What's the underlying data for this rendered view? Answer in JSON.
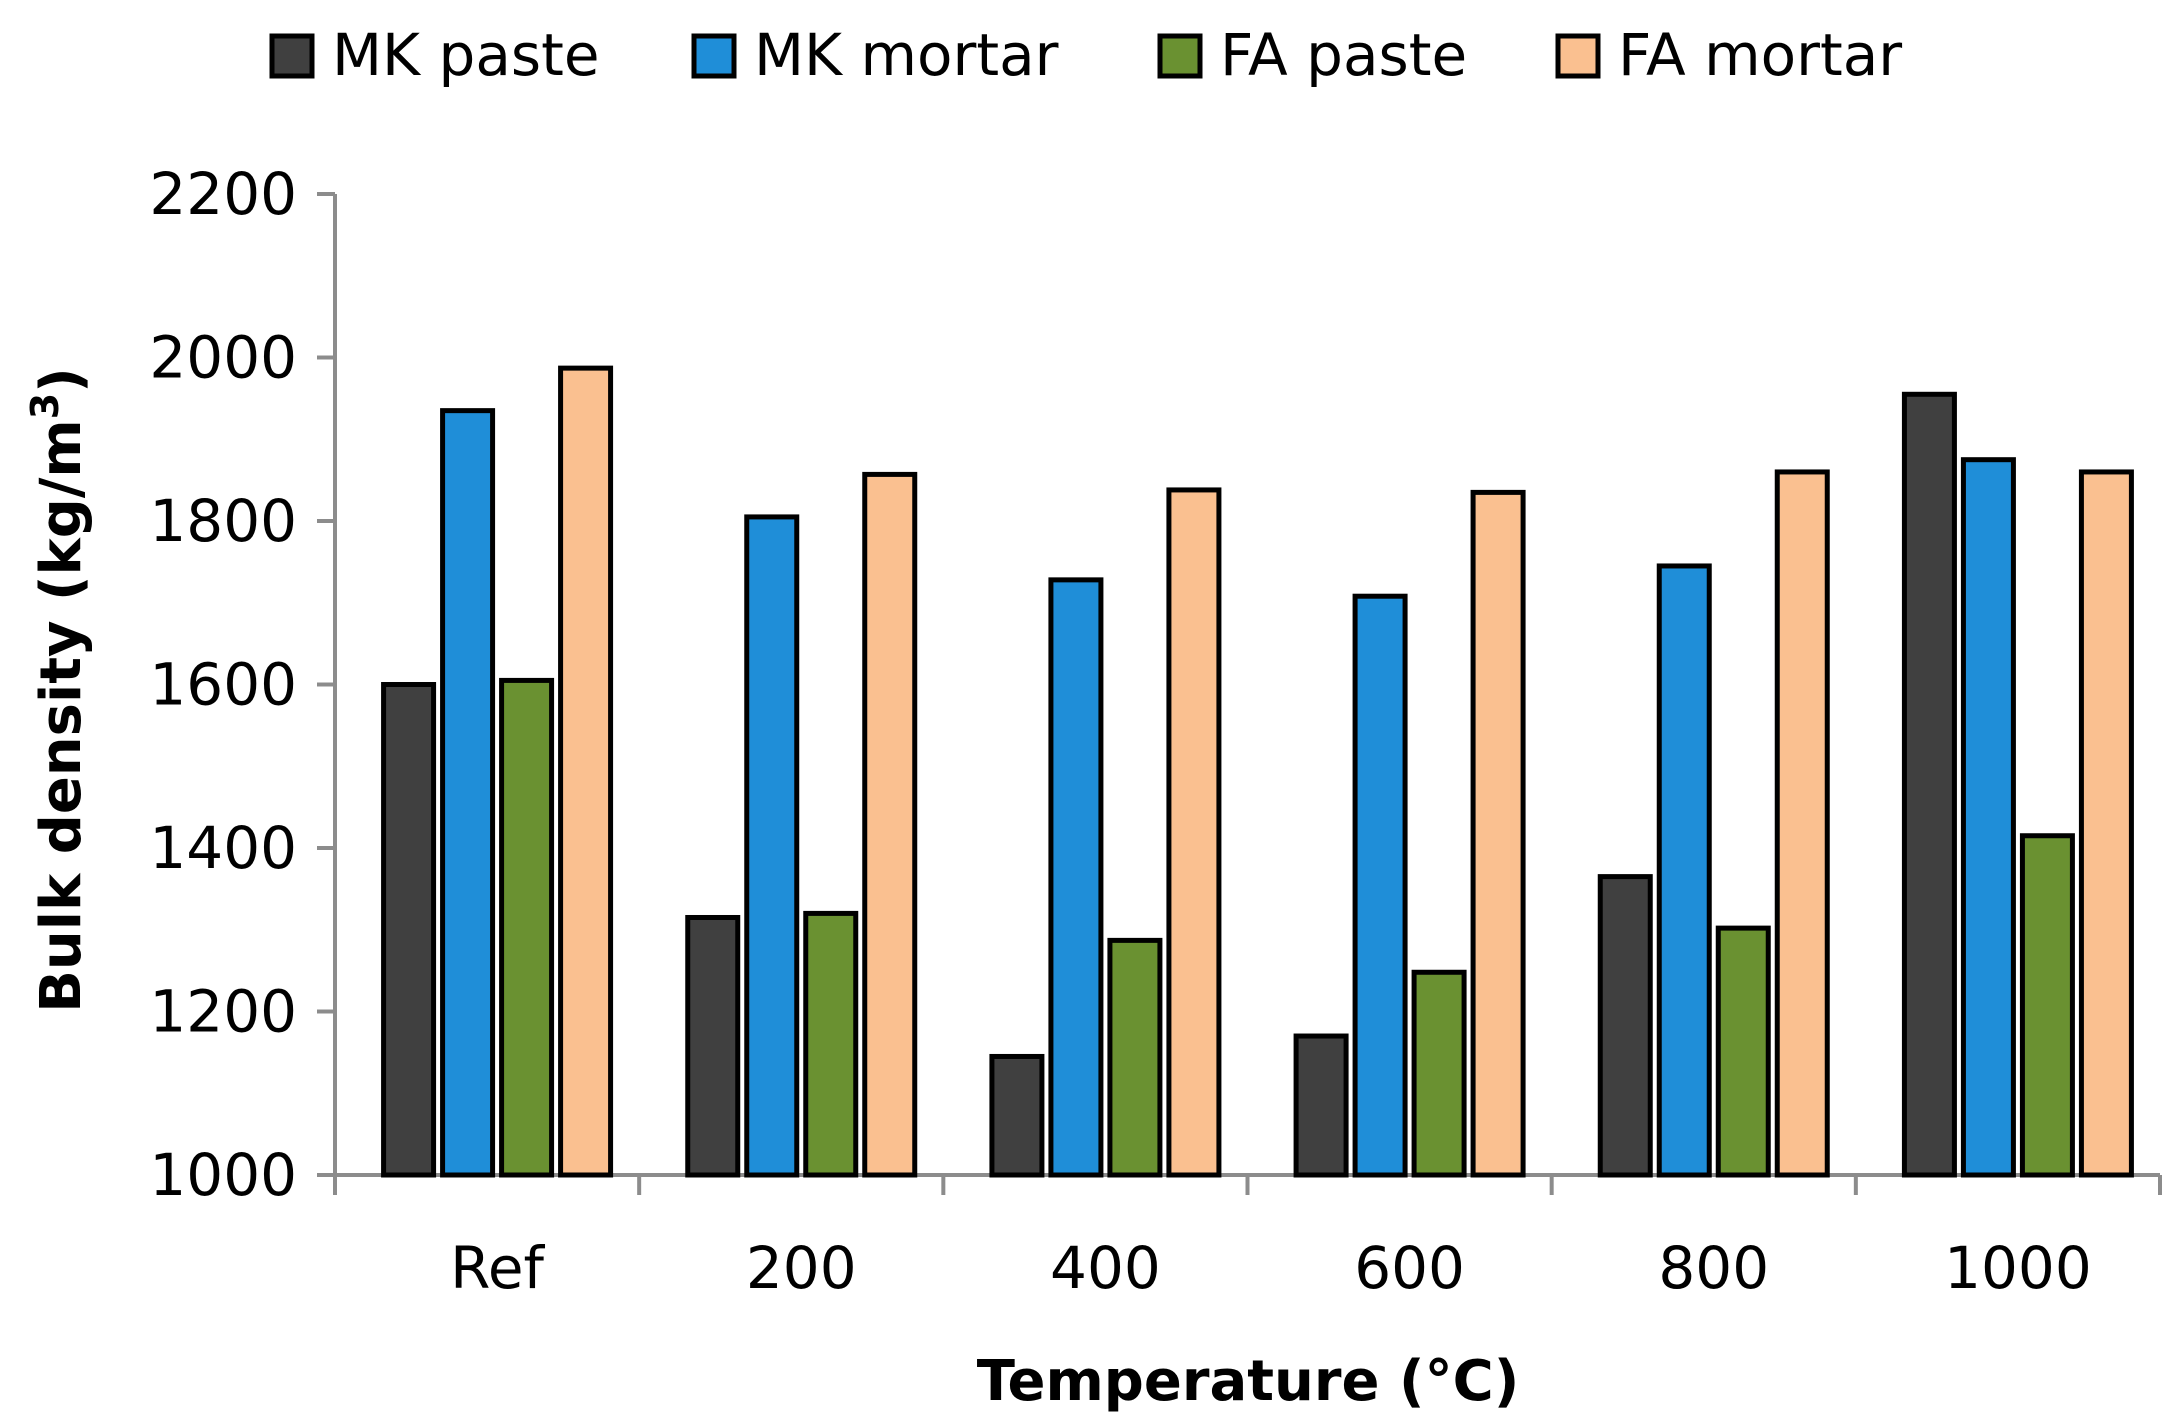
{
  "chart_data": {
    "type": "bar",
    "title": "",
    "xlabel": "Temperature (°C)",
    "ylabel_main": "Bulk density (kg/m",
    "ylabel_sup": "3",
    "ylabel_close": ")",
    "ylim": [
      1000,
      2200
    ],
    "yticks": [
      1000,
      1200,
      1400,
      1600,
      1800,
      2000,
      2200
    ],
    "categories": [
      "Ref",
      "200",
      "400",
      "600",
      "800",
      "1000"
    ],
    "legend_position": "top",
    "series": [
      {
        "name": "MK paste",
        "color": "#404040",
        "values": [
          1600,
          1315,
          1145,
          1170,
          1365,
          1955
        ]
      },
      {
        "name": "MK mortar",
        "color": "#1f8ed8",
        "values": [
          1935,
          1805,
          1728,
          1708,
          1745,
          1875
        ]
      },
      {
        "name": "FA paste",
        "color": "#6a9131",
        "values": [
          1605,
          1320,
          1287,
          1248,
          1302,
          1415
        ]
      },
      {
        "name": "FA mortar",
        "color": "#fac090",
        "values": [
          1987,
          1857,
          1838,
          1835,
          1860,
          1860
        ]
      }
    ]
  }
}
